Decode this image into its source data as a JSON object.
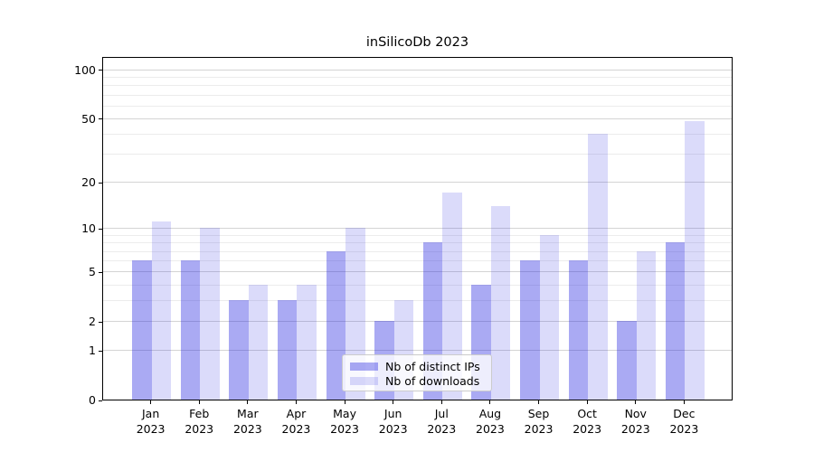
{
  "title": "inSilicoDb 2023",
  "chart_data": {
    "type": "bar",
    "title": "inSilicoDb 2023",
    "categories": [
      "Jan",
      "Feb",
      "Mar",
      "Apr",
      "May",
      "Jun",
      "Jul",
      "Aug",
      "Sep",
      "Oct",
      "Nov",
      "Dec"
    ],
    "year_label": "2023",
    "series": [
      {
        "name": "Nb of distinct IPs",
        "color": "rgba(32,32,224,0.38)",
        "values": [
          6,
          6,
          3,
          3,
          7,
          2,
          8,
          4,
          6,
          6,
          2,
          8
        ]
      },
      {
        "name": "Nb of downloads",
        "color": "rgba(32,32,224,0.16)",
        "values": [
          11,
          10,
          4,
          4,
          10,
          3,
          17,
          14,
          9,
          40,
          7,
          48
        ]
      }
    ],
    "yscale": "log1p",
    "ylim": [
      0,
      121
    ],
    "yticks": [
      0,
      1,
      2,
      5,
      10,
      20,
      50,
      100
    ],
    "minor_yticks": [
      3,
      4,
      6,
      7,
      8,
      9,
      30,
      40,
      60,
      70,
      80,
      90
    ],
    "grid": true,
    "legend_position": "lower center",
    "axis_color": "#000000",
    "major_grid_color": "#d4d4d4",
    "minor_grid_color": "#ececec"
  }
}
